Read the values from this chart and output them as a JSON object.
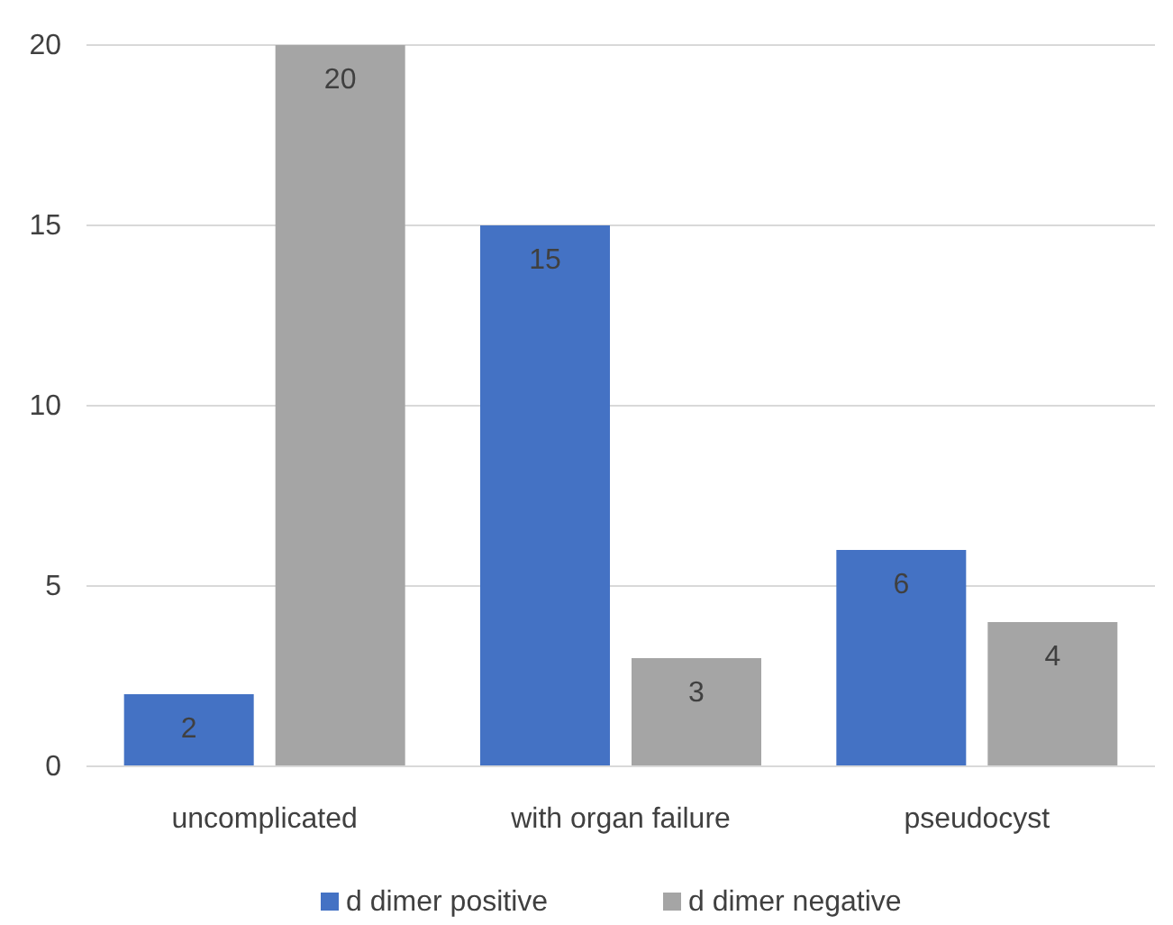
{
  "chart_data": {
    "type": "bar",
    "categories": [
      "uncomplicated",
      "with organ failure",
      "pseudocyst"
    ],
    "series": [
      {
        "name": "d dimer positive",
        "color": "#4472c4",
        "values": [
          2,
          15,
          6
        ]
      },
      {
        "name": "d dimer negative",
        "color": "#a5a5a5",
        "values": [
          20,
          3,
          4
        ]
      }
    ],
    "ylim": [
      0,
      20
    ],
    "yticks": [
      0,
      5,
      10,
      15,
      20
    ],
    "grid": "y",
    "legend": "bottom",
    "data_labels": true
  }
}
